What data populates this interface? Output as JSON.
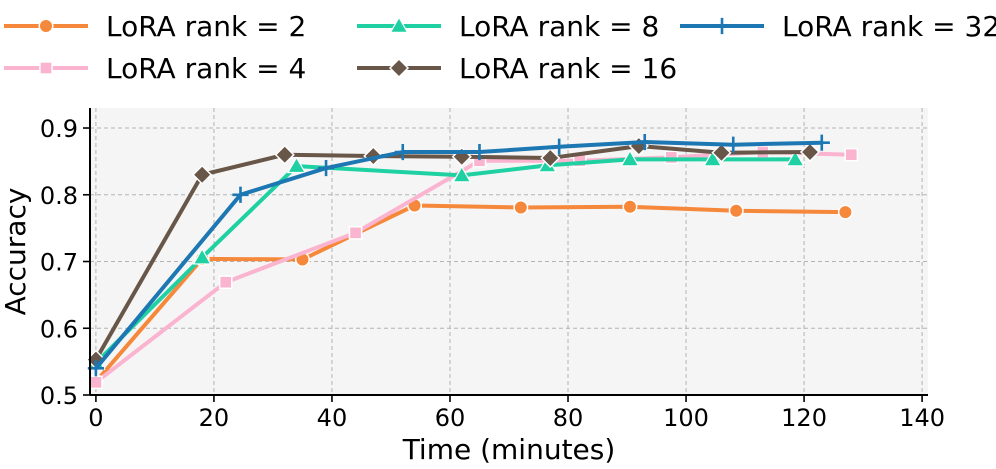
{
  "chart_data": {
    "type": "line",
    "title": "",
    "xlabel": "Time (minutes)",
    "ylabel": "Accuracy",
    "xlim": [
      -1,
      141
    ],
    "ylim": [
      0.5,
      0.93
    ],
    "xticks": [
      0,
      20,
      40,
      60,
      80,
      100,
      120,
      140
    ],
    "yticks": [
      0.5,
      0.6,
      0.7,
      0.8,
      0.9
    ],
    "grid": true,
    "legend_position": "top",
    "series": [
      {
        "name": "LoRA rank = 2",
        "color": "#f5883a",
        "marker": "circle",
        "x": [
          0,
          18,
          35,
          54,
          72,
          90.5,
          108.5,
          127
        ],
        "y": [
          0.52,
          0.704,
          0.703,
          0.784,
          0.781,
          0.782,
          0.776,
          0.774
        ]
      },
      {
        "name": "LoRA rank = 4",
        "color": "#fbb4cf",
        "marker": "square",
        "x": [
          0,
          22,
          44,
          65,
          82,
          97.5,
          113,
          128
        ],
        "y": [
          0.519,
          0.669,
          0.743,
          0.851,
          0.851,
          0.856,
          0.864,
          0.86
        ]
      },
      {
        "name": "LoRA rank = 8",
        "color": "#1fd1a2",
        "marker": "triangle",
        "x": [
          0,
          18,
          34,
          62,
          76.5,
          90.5,
          104.5,
          118.5
        ],
        "y": [
          0.548,
          0.706,
          0.843,
          0.829,
          0.844,
          0.853,
          0.853,
          0.853
        ]
      },
      {
        "name": "LoRA rank = 16",
        "color": "#685648",
        "marker": "diamond",
        "x": [
          0,
          18,
          32,
          47,
          62,
          77,
          92,
          106,
          121
        ],
        "y": [
          0.553,
          0.83,
          0.86,
          0.858,
          0.857,
          0.855,
          0.873,
          0.863,
          0.864
        ]
      },
      {
        "name": "LoRA rank = 32",
        "color": "#1c77b3",
        "marker": "plus",
        "x": [
          0,
          24.5,
          39,
          52,
          65,
          78.5,
          93,
          108,
          123
        ],
        "y": [
          0.54,
          0.8,
          0.84,
          0.864,
          0.864,
          0.872,
          0.879,
          0.875,
          0.878
        ]
      }
    ]
  }
}
